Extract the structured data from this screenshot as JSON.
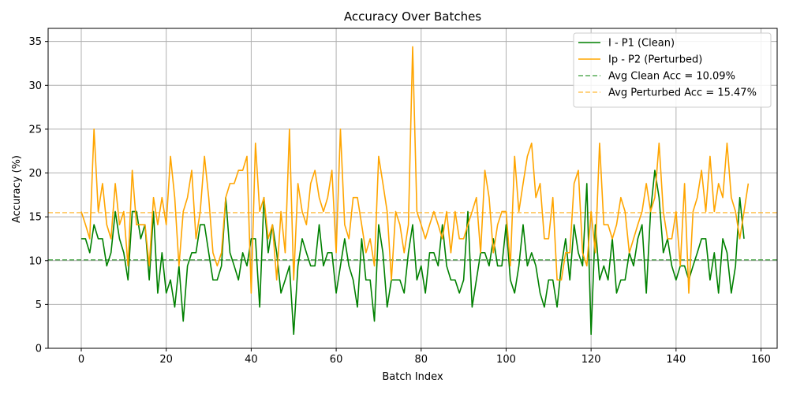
{
  "chart_data": {
    "type": "line",
    "title": "Accuracy Over Batches",
    "xlabel": "Batch Index",
    "ylabel": "Accuracy (%)",
    "xlim": [
      -7.8,
      163.8
    ],
    "ylim": [
      0,
      36.5
    ],
    "xticks": [
      0,
      20,
      40,
      60,
      80,
      100,
      120,
      140,
      160
    ],
    "yticks": [
      0,
      5,
      10,
      15,
      20,
      25,
      30,
      35
    ],
    "grid": true,
    "legend_position": "top-right",
    "series": [
      {
        "name": "I - P1 (Clean)",
        "color": "#008000",
        "style": "solid",
        "values": [
          12.5,
          12.5,
          10.9,
          14.1,
          12.5,
          12.5,
          9.4,
          10.9,
          15.6,
          12.5,
          10.9,
          7.8,
          15.6,
          15.6,
          12.5,
          14.1,
          7.8,
          15.6,
          6.3,
          10.9,
          6.3,
          7.8,
          4.7,
          9.4,
          3.1,
          9.4,
          10.9,
          10.9,
          14.1,
          14.1,
          10.9,
          7.8,
          7.8,
          9.4,
          17.2,
          10.9,
          9.4,
          7.8,
          10.9,
          9.4,
          12.5,
          12.5,
          4.7,
          17.2,
          10.9,
          14.1,
          10.9,
          6.3,
          7.8,
          9.4,
          1.6,
          9.4,
          12.5,
          10.9,
          9.4,
          9.4,
          14.1,
          9.4,
          10.9,
          10.9,
          6.3,
          9.4,
          12.5,
          9.4,
          7.8,
          4.7,
          12.5,
          7.8,
          7.8,
          3.1,
          14.1,
          10.9,
          4.7,
          7.8,
          7.8,
          7.8,
          6.3,
          10.9,
          14.1,
          7.8,
          9.4,
          6.3,
          10.9,
          10.9,
          9.4,
          14.1,
          9.4,
          7.8,
          7.8,
          6.3,
          7.8,
          15.6,
          4.7,
          7.8,
          10.9,
          10.9,
          9.4,
          12.5,
          9.4,
          9.4,
          14.1,
          7.8,
          6.3,
          9.4,
          14.1,
          9.4,
          10.9,
          9.4,
          6.3,
          4.7,
          7.8,
          7.8,
          4.7,
          9.4,
          12.5,
          7.8,
          14.1,
          10.9,
          9.4,
          18.8,
          1.6,
          14.1,
          7.8,
          9.4,
          7.8,
          12.5,
          6.3,
          7.8,
          7.8,
          10.9,
          9.4,
          12.5,
          14.1,
          6.3,
          15.6,
          20.3,
          17.2,
          10.9,
          12.5,
          9.4,
          7.8,
          9.4,
          9.4,
          7.8,
          9.4,
          10.9,
          12.5,
          12.5,
          7.8,
          10.9,
          6.3,
          12.5,
          10.9,
          6.3,
          9.4,
          17.2,
          12.5
        ]
      },
      {
        "name": "Ip - P2 (Perturbed)",
        "color": "#FFA500",
        "style": "solid",
        "values": [
          15.6,
          14.1,
          12.5,
          25.0,
          15.6,
          18.8,
          14.1,
          12.5,
          18.8,
          14.1,
          15.6,
          9.4,
          20.3,
          14.1,
          14.1,
          14.1,
          9.4,
          17.2,
          14.1,
          17.2,
          14.1,
          21.9,
          17.2,
          9.4,
          15.6,
          17.2,
          20.3,
          12.5,
          15.6,
          21.9,
          17.2,
          10.9,
          9.4,
          10.9,
          17.2,
          18.8,
          18.8,
          20.3,
          20.3,
          21.9,
          6.3,
          23.4,
          15.6,
          17.2,
          12.5,
          14.1,
          7.8,
          15.6,
          10.9,
          25.0,
          7.8,
          18.8,
          15.6,
          14.1,
          18.8,
          20.3,
          17.2,
          15.6,
          17.2,
          20.3,
          10.9,
          25.0,
          14.1,
          12.5,
          17.2,
          17.2,
          14.1,
          10.9,
          12.5,
          9.4,
          21.9,
          18.8,
          15.6,
          7.8,
          15.6,
          14.1,
          10.9,
          14.1,
          34.4,
          15.6,
          14.1,
          12.5,
          14.1,
          15.6,
          14.1,
          12.5,
          15.6,
          10.9,
          15.6,
          12.5,
          12.5,
          14.1,
          15.6,
          17.2,
          10.9,
          20.3,
          17.2,
          10.9,
          14.1,
          15.6,
          15.6,
          9.4,
          21.9,
          15.6,
          18.8,
          21.9,
          23.4,
          17.2,
          18.8,
          12.5,
          12.5,
          17.2,
          7.8,
          7.8,
          10.9,
          10.9,
          18.8,
          20.3,
          10.9,
          9.4,
          15.6,
          10.9,
          23.4,
          14.1,
          14.1,
          12.5,
          14.1,
          17.2,
          15.6,
          10.9,
          12.5,
          14.1,
          15.6,
          18.8,
          15.6,
          17.2,
          23.4,
          15.6,
          12.5,
          12.5,
          15.6,
          9.4,
          18.8,
          6.3,
          15.6,
          17.2,
          20.3,
          15.6,
          21.9,
          15.6,
          18.8,
          17.2,
          23.4,
          17.2,
          15.6,
          12.5,
          15.6,
          18.8
        ]
      }
    ],
    "reference_lines": [
      {
        "name": "Avg Clean Acc = 10.09%",
        "value": 10.09,
        "color": "#008000",
        "style": "dashed"
      },
      {
        "name": "Avg Perturbed Acc = 15.47%",
        "value": 15.47,
        "color": "#FFA500",
        "style": "dashed"
      }
    ]
  }
}
